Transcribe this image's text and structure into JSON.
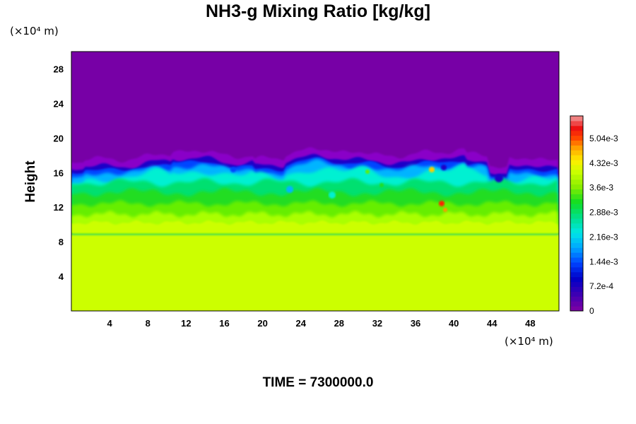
{
  "chart_data": {
    "type": "heatmap",
    "title": "NH3-g Mixing Ratio [kg/kg]",
    "ylabel": "Height",
    "xlabel": "",
    "x_unit": "(×10⁴ m)",
    "y_unit": "(×10⁴ m)",
    "xlim": [
      0,
      51
    ],
    "ylim": [
      0,
      30
    ],
    "x_ticks": [
      4,
      8,
      12,
      16,
      20,
      24,
      28,
      32,
      36,
      40,
      44,
      48
    ],
    "y_ticks": [
      4,
      8,
      12,
      16,
      20,
      24,
      28
    ],
    "colorbar": {
      "range": [
        0,
        0.0057
      ],
      "tick_values": [
        0,
        0.00072,
        0.00144,
        0.00216,
        0.00288,
        0.0036,
        0.00432,
        0.00504
      ],
      "tick_labels": [
        "0",
        "7.2e-4",
        "1.44e-3",
        "2.16e-3",
        "2.88e-3",
        "3.6e-3",
        "4.32e-3",
        "5.04e-3"
      ]
    },
    "field_regions": [
      {
        "region": "y 0–10",
        "value": 0.0036
      },
      {
        "region": "y 10–13",
        "value": 0.0031
      },
      {
        "region": "y 13–16",
        "value": 0.0022
      },
      {
        "region": "y 16–30",
        "value": 0
      }
    ],
    "time_label": "TIME = 7300000.0"
  }
}
